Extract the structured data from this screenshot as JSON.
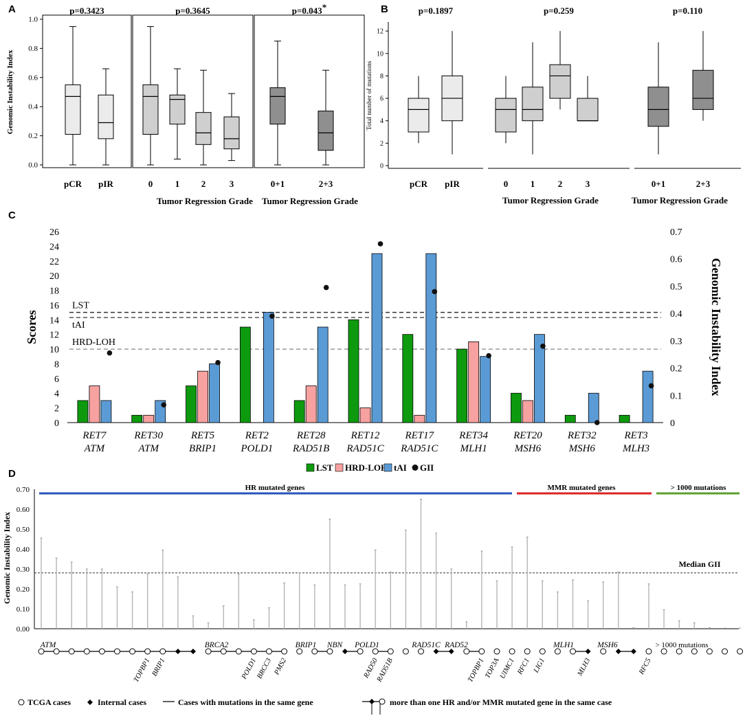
{
  "chart_data": [
    {
      "panel": "A",
      "type": "boxplot",
      "ylabel": "Genomic Instability Index",
      "ylim": [
        0,
        1.0
      ],
      "yticks": [
        "0.0",
        "0.2",
        "0.4",
        "0.6",
        "0.8",
        "1.0"
      ],
      "groups": [
        {
          "pvalue": "p=0.3423",
          "xlabel": "",
          "boxes": [
            {
              "label": "pCR",
              "min": 0.0,
              "q1": 0.21,
              "median": 0.47,
              "q3": 0.55,
              "max": 0.95,
              "shade": "light"
            },
            {
              "label": "pIR",
              "min": 0.0,
              "q1": 0.18,
              "median": 0.29,
              "q3": 0.48,
              "max": 0.66,
              "shade": "light"
            }
          ]
        },
        {
          "pvalue": "p=0.3645",
          "xlabel": "Tumor Regression Grade",
          "boxes": [
            {
              "label": "0",
              "min": 0.0,
              "q1": 0.21,
              "median": 0.47,
              "q3": 0.55,
              "max": 0.95,
              "shade": "mid"
            },
            {
              "label": "1",
              "min": 0.04,
              "q1": 0.28,
              "median": 0.45,
              "q3": 0.48,
              "max": 0.66,
              "shade": "mid"
            },
            {
              "label": "2",
              "min": 0.0,
              "q1": 0.14,
              "median": 0.22,
              "q3": 0.36,
              "max": 0.65,
              "shade": "mid"
            },
            {
              "label": "3",
              "min": 0.03,
              "q1": 0.11,
              "median": 0.18,
              "q3": 0.33,
              "max": 0.49,
              "shade": "mid"
            }
          ]
        },
        {
          "pvalue": "p=0.043",
          "pvalue_mark": "*",
          "xlabel": "Tumor Regression Grade",
          "boxes": [
            {
              "label": "0+1",
              "min": 0.0,
              "q1": 0.28,
              "median": 0.47,
              "q3": 0.53,
              "max": 0.85,
              "shade": "dark"
            },
            {
              "label": "2+3",
              "min": 0.0,
              "q1": 0.1,
              "median": 0.22,
              "q3": 0.37,
              "max": 0.65,
              "shade": "dark"
            }
          ]
        }
      ]
    },
    {
      "panel": "B",
      "type": "boxplot",
      "ylabel": "Total number of mutations",
      "ylim": [
        0,
        12.5
      ],
      "yticks": [
        "0",
        "2",
        "4",
        "6",
        "8",
        "10",
        "12"
      ],
      "groups": [
        {
          "pvalue": "p=0.1897",
          "xlabel": "",
          "boxes": [
            {
              "label": "pCR",
              "min": 2,
              "q1": 3,
              "median": 5,
              "q3": 6,
              "max": 8,
              "shade": "light"
            },
            {
              "label": "pIR",
              "min": 1,
              "q1": 4,
              "median": 6,
              "q3": 8,
              "max": 12,
              "shade": "light"
            }
          ]
        },
        {
          "pvalue": "p=0.259",
          "xlabel": "Tumor Regression Grade",
          "boxes": [
            {
              "label": "0",
              "min": 2,
              "q1": 3,
              "median": 5,
              "q3": 6,
              "max": 8,
              "shade": "mid"
            },
            {
              "label": "1",
              "min": 1,
              "q1": 4,
              "median": 5,
              "q3": 7,
              "max": 11,
              "shade": "mid"
            },
            {
              "label": "2",
              "min": 5,
              "q1": 6,
              "median": 8,
              "q3": 9,
              "max": 12,
              "shade": "mid"
            },
            {
              "label": "3",
              "min": 4,
              "q1": 4,
              "median": 4,
              "q3": 6,
              "max": 8,
              "shade": "mid"
            }
          ]
        },
        {
          "pvalue": "p=0.110",
          "xlabel": "Tumor Regression Grade",
          "boxes": [
            {
              "label": "0+1",
              "min": 1,
              "q1": 3.5,
              "median": 5,
              "q3": 7,
              "max": 11,
              "shade": "dark"
            },
            {
              "label": "2+3",
              "min": 4,
              "q1": 5,
              "median": 6,
              "q3": 8.5,
              "max": 12,
              "shade": "dark"
            }
          ]
        }
      ]
    },
    {
      "panel": "C",
      "type": "bar",
      "ylabel": "Scores",
      "y2label": "Genomic Instability Index",
      "ylim": [
        0,
        26
      ],
      "y2lim": [
        0,
        0.7
      ],
      "yticks": [
        "0",
        "2",
        "4",
        "6",
        "8",
        "10",
        "12",
        "14",
        "16",
        "18",
        "20",
        "22",
        "24",
        "26"
      ],
      "y2ticks": [
        "0",
        "0.1",
        "0.2",
        "0.3",
        "0.4",
        "0.5",
        "0.6",
        "0.7"
      ],
      "categories": [
        {
          "case": "RET7",
          "gene": "ATM"
        },
        {
          "case": "RET30",
          "gene": "ATM"
        },
        {
          "case": "RET5",
          "gene": "BRIP1"
        },
        {
          "case": "RET2",
          "gene": "POLD1"
        },
        {
          "case": "RET28",
          "gene": "RAD51B"
        },
        {
          "case": "RET12",
          "gene": "RAD51C"
        },
        {
          "case": "RET17",
          "gene": "RAD51C"
        },
        {
          "case": "RET34",
          "gene": "MLH1"
        },
        {
          "case": "RET20",
          "gene": "MSH6"
        },
        {
          "case": "RET32",
          "gene": "MSH6"
        },
        {
          "case": "RET3",
          "gene": "MLH3"
        }
      ],
      "series": [
        {
          "name": "LST",
          "color": "#0e9a0e",
          "values": [
            3,
            1,
            5,
            13,
            3,
            14,
            12,
            10,
            4,
            1,
            1
          ]
        },
        {
          "name": "HRD-LOH",
          "color": "#f7a1a1",
          "values": [
            5,
            1,
            7,
            0,
            5,
            2,
            1,
            11,
            3,
            0,
            0
          ]
        },
        {
          "name": "tAI",
          "color": "#5b9bd5",
          "values": [
            3,
            3,
            8,
            15,
            13,
            23,
            23,
            9,
            12,
            4,
            7
          ]
        }
      ],
      "gii": {
        "name": "GII",
        "values": [
          0.255,
          0.065,
          0.22,
          0.39,
          0.495,
          0.655,
          0.48,
          0.245,
          0.28,
          0.0,
          0.135
        ]
      },
      "thresholds": [
        {
          "label": "LST",
          "value": 15
        },
        {
          "label": "tAI",
          "value": 14.3
        },
        {
          "label": "HRD-LOH",
          "value": 10
        }
      ]
    },
    {
      "panel": "D",
      "type": "lollipop",
      "ylabel": "Genomic Instability Index",
      "ylim": [
        0,
        0.7
      ],
      "yticks": [
        "0.00",
        "0.10",
        "0.20",
        "0.30",
        "0.40",
        "0.50",
        "0.60",
        "0.70"
      ],
      "median": {
        "label": "Median GII",
        "value": 0.28
      },
      "sections": [
        {
          "label": "HR mutated genes",
          "color": "#2a52be"
        },
        {
          "label": "MMR  mutated genes",
          "color": "#dd2222"
        },
        {
          "label": "> 1000 mutations",
          "color": "#5aa02c"
        }
      ],
      "values": [
        0.455,
        0.355,
        0.335,
        0.3,
        0.3,
        0.21,
        0.185,
        0.275,
        0.395,
        0.26,
        0.065,
        0.03,
        0.115,
        0.275,
        0.045,
        0.105,
        0.23,
        0.28,
        0.22,
        0.55,
        0.22,
        0.225,
        0.395,
        0.285,
        0.495,
        0.65,
        0.48,
        0.3,
        0.035,
        0.39,
        0.24,
        0.41,
        0.46,
        0.24,
        0.185,
        0.245,
        0.14,
        0.235,
        0.285,
        0.005,
        0.225,
        0.095,
        0.04,
        0.03,
        0.005,
        0.003,
        0.003
      ],
      "gene_labels_top": [
        "ATM",
        "BRCA2",
        "BRIP1",
        "NBN",
        "POLD1",
        "RAD51C",
        "RAD52",
        "MLH1",
        "MSH6",
        "> 1000 mutations"
      ],
      "gene_labels_bottom": [
        "TOPBP1",
        "BRIP1",
        "POLD1",
        "BRCC3",
        "PMS2",
        "RAD50",
        "RAD51B",
        "TOPBP1",
        "TOP3A",
        "UIMC1",
        "RFC1",
        "LIG1",
        "MLH3",
        "RFC5"
      ]
    }
  ],
  "panel_labels": {
    "a": "A",
    "b": "B",
    "c": "C",
    "d": "D"
  },
  "legend_c": [
    "LST",
    "HRD-LOH",
    "tAI",
    "GII"
  ],
  "legend_d": {
    "tcga": "TCGA cases",
    "internal": "Internal cases",
    "same_gene": "Cases with mutations in the same gene",
    "multi": "more than one HR and/or MMR mutated gene in the same case"
  }
}
